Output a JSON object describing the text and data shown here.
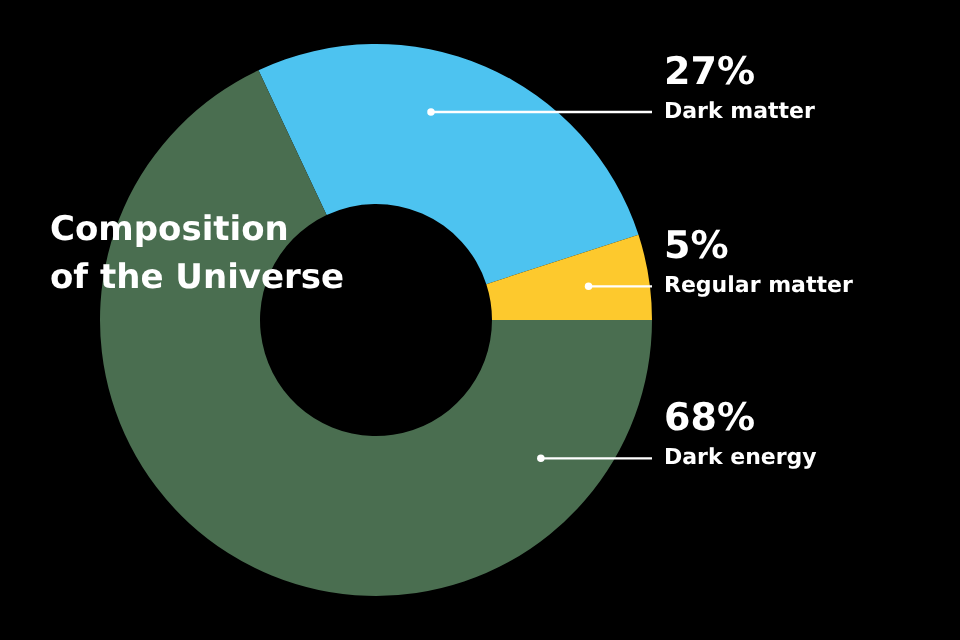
{
  "chart_data": {
    "type": "donut",
    "title": "Composition of the Universe",
    "categories": [
      "Dark matter",
      "Regular matter",
      "Dark energy"
    ],
    "values": [
      27,
      5,
      68
    ],
    "colors": [
      "#4dc3f0",
      "#fdc92d",
      "#4a6e50"
    ],
    "value_labels": [
      "27%",
      "5%",
      "68%"
    ]
  }
}
